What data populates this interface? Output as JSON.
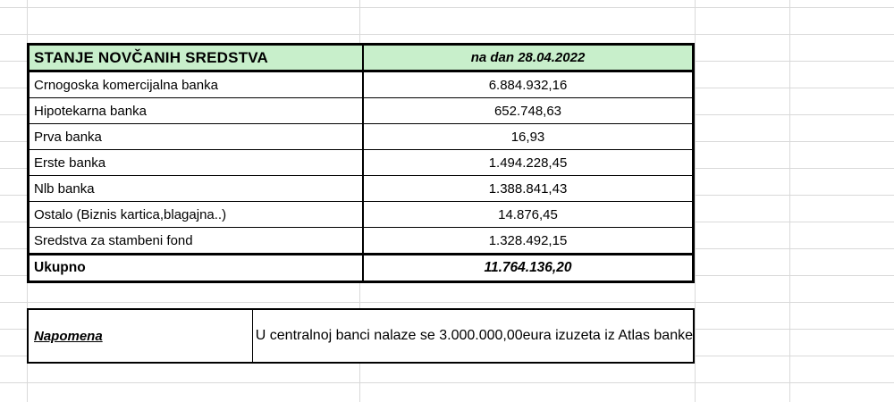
{
  "colors": {
    "header_bg": "#c8efcb"
  },
  "table": {
    "title": "STANJE NOVČANIH SREDSTVA",
    "date": "na dan 28.04.2022",
    "rows": [
      {
        "label": "Crnogoska komercijalna banka",
        "value": "6.884.932,16"
      },
      {
        "label": "Hipotekarna banka",
        "value": "652.748,63"
      },
      {
        "label": "Prva banka",
        "value": "16,93"
      },
      {
        "label": "Erste banka",
        "value": "1.494.228,45"
      },
      {
        "label": "Nlb banka",
        "value": "1.388.841,43"
      },
      {
        "label": "Ostalo (Biznis kartica,blagajna..)",
        "value": "14.876,45"
      },
      {
        "label": "Sredstva za stambeni fond",
        "value": "1.328.492,15"
      }
    ],
    "total": {
      "label": "Ukupno",
      "value": "11.764.136,20"
    }
  },
  "note": {
    "label": "Napomena",
    "text": "U centralnoj banci nalaze se 3.000.000,00eura izuzeta iz Atlas banke"
  }
}
